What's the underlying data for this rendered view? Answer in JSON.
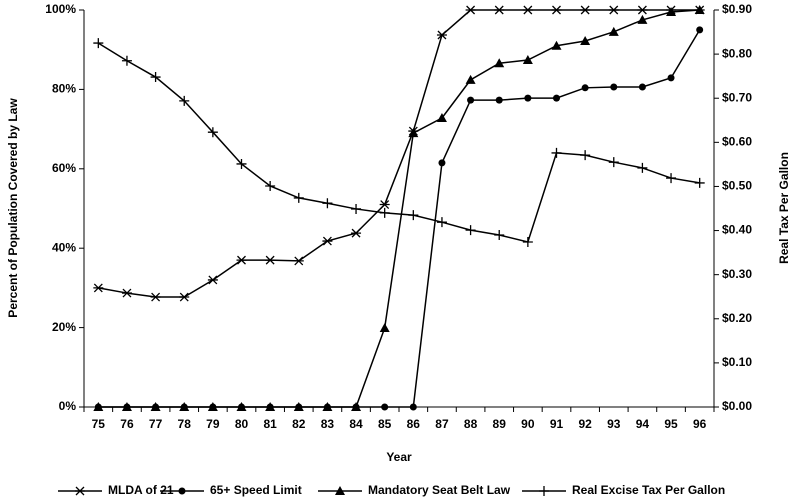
{
  "chart_data": {
    "type": "line",
    "x_label": "Year",
    "y_label": "Percent of Population Covered by Law",
    "y2_label": "Real Tax Per Gallon",
    "categories": [
      "75",
      "76",
      "77",
      "78",
      "79",
      "80",
      "81",
      "82",
      "83",
      "84",
      "85",
      "86",
      "87",
      "88",
      "89",
      "90",
      "91",
      "92",
      "93",
      "94",
      "95",
      "96"
    ],
    "ylim": [
      0,
      100
    ],
    "yticks": [
      {
        "value": 0,
        "label": "0%"
      },
      {
        "value": 20,
        "label": "20%"
      },
      {
        "value": 40,
        "label": "40%"
      },
      {
        "value": 60,
        "label": "60%"
      },
      {
        "value": 80,
        "label": "80%"
      },
      {
        "value": 100,
        "label": "100%"
      }
    ],
    "y2lim": [
      0,
      0.9
    ],
    "y2ticks": [
      {
        "value": 0,
        "label": "$0.00"
      },
      {
        "value": 0.1,
        "label": "$0.10"
      },
      {
        "value": 0.2,
        "label": "$0.20"
      },
      {
        "value": 0.3,
        "label": "$0.30"
      },
      {
        "value": 0.4,
        "label": "$0.40"
      },
      {
        "value": 0.5,
        "label": "$0.50"
      },
      {
        "value": 0.6,
        "label": "$0.60"
      },
      {
        "value": 0.7,
        "label": "$0.70"
      },
      {
        "value": 0.8,
        "label": "$0.80"
      },
      {
        "value": 0.9,
        "label": "$0.90"
      }
    ],
    "grid": false,
    "legend": "bottom",
    "series": [
      {
        "name": "MLDA of 21",
        "color": "#000000",
        "marker": "asterisk",
        "values": [
          30,
          28.7,
          27.7,
          27.7,
          32,
          37,
          37,
          36.8,
          41.8,
          43.8,
          51,
          69.5,
          93.7,
          100,
          100,
          100,
          100,
          100,
          100,
          100,
          100,
          100
        ]
      },
      {
        "name": "65+ Speed Limit",
        "color": "#000000",
        "marker": "circle",
        "values": [
          0,
          0,
          0,
          0,
          0,
          0,
          0,
          0,
          0,
          0,
          0,
          0,
          61.5,
          77.3,
          77.3,
          77.8,
          77.8,
          80.4,
          80.6,
          80.6,
          82.9,
          95
        ]
      },
      {
        "name": "Mandatory Seat Belt Law",
        "color": "#000000",
        "marker": "triangle",
        "values": [
          0,
          0,
          0,
          0,
          0,
          0,
          0,
          0,
          0,
          0,
          19.9,
          69,
          72.8,
          82.4,
          86.6,
          87.4,
          91,
          92.2,
          94.5,
          97.5,
          99.5,
          100
        ]
      },
      {
        "name": "Real Excise Tax Per Gallon",
        "color": "#000000",
        "marker": "plus",
        "axis": "y2",
        "values": [
          0.825,
          0.785,
          0.748,
          0.694,
          0.623,
          0.551,
          0.501,
          0.474,
          0.462,
          0.449,
          0.44,
          0.435,
          0.419,
          0.401,
          0.39,
          0.374,
          0.576,
          0.571,
          0.555,
          0.542,
          0.519,
          0.508
        ]
      }
    ]
  }
}
